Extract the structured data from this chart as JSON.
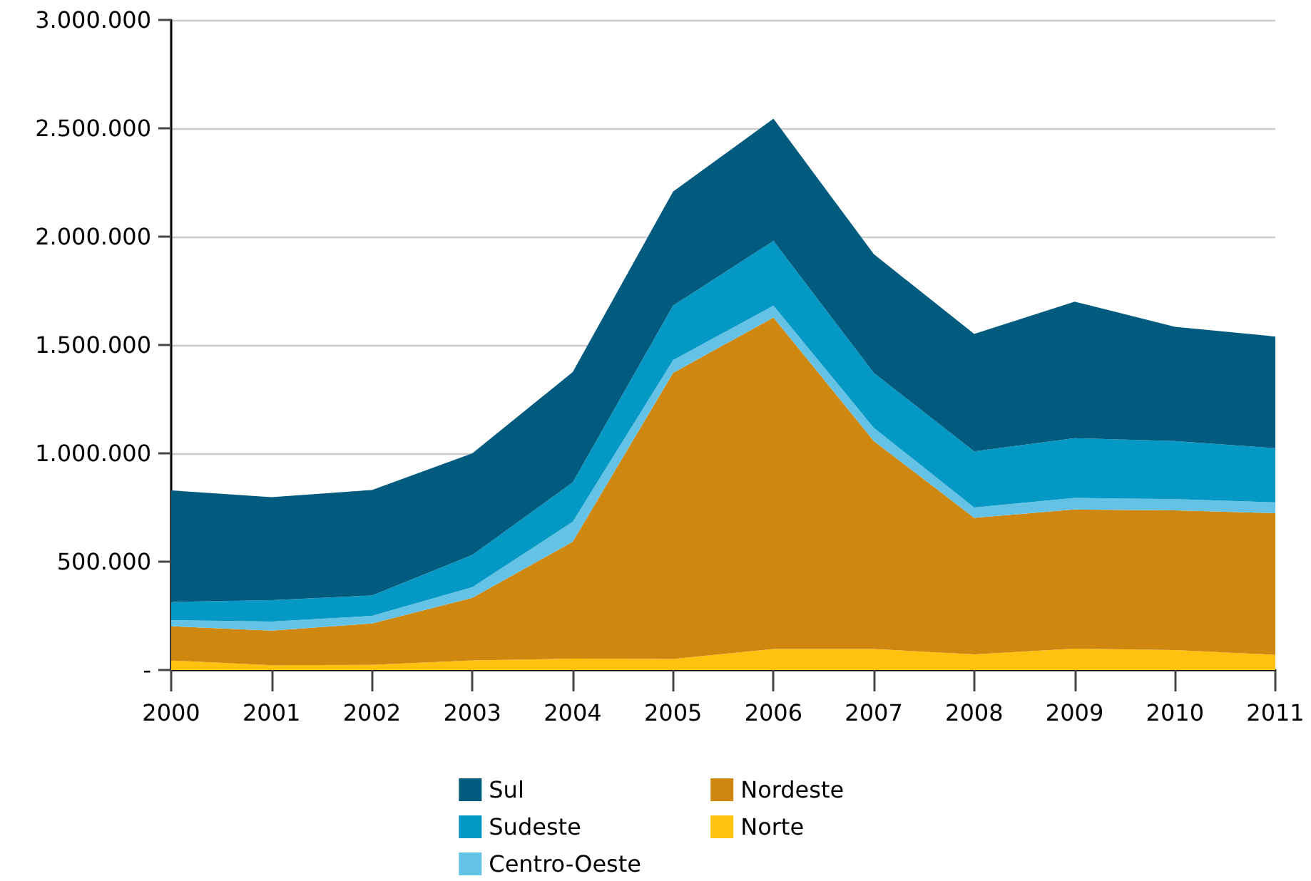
{
  "chart_data": {
    "type": "area",
    "stacked": true,
    "categories": [
      "2000",
      "2001",
      "2002",
      "2003",
      "2004",
      "2005",
      "2006",
      "2007",
      "2008",
      "2009",
      "2010",
      "2011"
    ],
    "series": [
      {
        "name": "Norte",
        "color": "#ffc20e",
        "values": [
          44000,
          22000,
          24000,
          44000,
          53000,
          51000,
          97000,
          97000,
          72000,
          99000,
          92000,
          70000
        ]
      },
      {
        "name": "Nordeste",
        "color": "#ce8810",
        "values": [
          158000,
          160000,
          191000,
          289000,
          539000,
          1320000,
          1530000,
          960000,
          630000,
          642000,
          645000,
          654000
        ]
      },
      {
        "name": "Centro-Oeste",
        "color": "#64c2e6",
        "values": [
          28000,
          42000,
          35000,
          49000,
          92000,
          59000,
          55000,
          61000,
          48000,
          53000,
          52000,
          50000
        ]
      },
      {
        "name": "Sudeste",
        "color": "#0399c4",
        "values": [
          84000,
          98000,
          94000,
          149000,
          182000,
          252000,
          298000,
          253000,
          259000,
          276000,
          268000,
          250000
        ]
      },
      {
        "name": "Sul",
        "color": "#005b7f",
        "values": [
          515000,
          476000,
          487000,
          469000,
          509000,
          526000,
          564000,
          548000,
          542000,
          630000,
          527000,
          515000
        ]
      }
    ],
    "ylim": [
      0,
      3000000
    ],
    "yticks": [
      {
        "value": 0,
        "label": "-"
      },
      {
        "value": 500000,
        "label": "500.000"
      },
      {
        "value": 1000000,
        "label": "1.000.000"
      },
      {
        "value": 1500000,
        "label": "1.500.000"
      },
      {
        "value": 2000000,
        "label": "2.000.000"
      },
      {
        "value": 2500000,
        "label": "2.500.000"
      },
      {
        "value": 3000000,
        "label": "3.000.000"
      }
    ],
    "grid": "y",
    "legend": "bottom"
  }
}
